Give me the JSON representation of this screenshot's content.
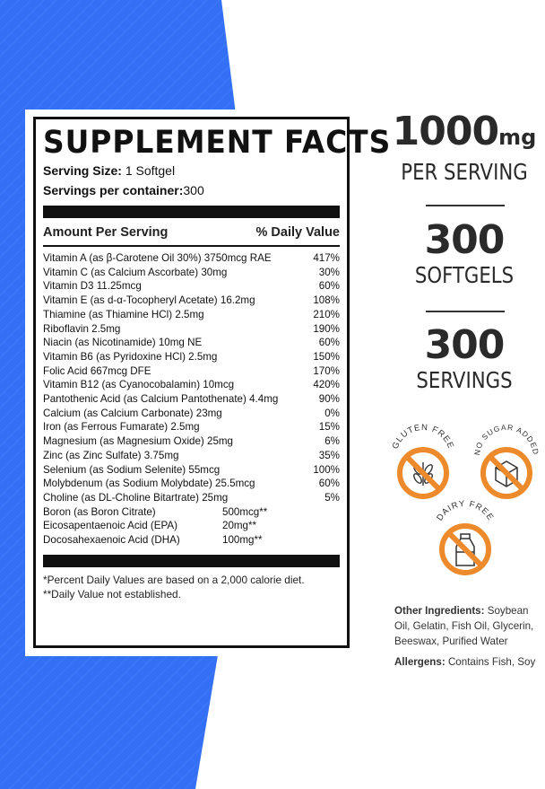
{
  "colors": {
    "background_blue": "#3370f5",
    "badge_orange": "#ec8a2c"
  },
  "facts": {
    "title": "SUPPLEMENT FACTS",
    "serving_size_label": "Serving Size:",
    "serving_size_value": "1 Softgel",
    "servings_label": "Servings per container:",
    "servings_value": "300",
    "amount_header": "Amount Per Serving",
    "dv_header": "% Daily Value",
    "rows": [
      {
        "name": "Vitamin A (as β-Carotene Oil 30%) 3750mcg RAE",
        "dv": "417%"
      },
      {
        "name": "Vitamin C (as Calcium Ascorbate)  30mg",
        "dv": "30%"
      },
      {
        "name": "Vitamin D3 11.25mcg",
        "dv": "60%"
      },
      {
        "name": "Vitamin E (as d-α-Tocopheryl Acetate)  16.2mg",
        "dv": "108%"
      },
      {
        "name": "Thiamine (as Thiamine HCl)  2.5mg",
        "dv": "210%"
      },
      {
        "name": "Riboflavin  2.5mg",
        "dv": "190%"
      },
      {
        "name": "Niacin (as Nicotinamide)  10mg NE",
        "dv": "60%"
      },
      {
        "name": "Vitamin B6 (as Pyridoxine HCl)  2.5mg",
        "dv": "150%"
      },
      {
        "name": "Folic Acid  667mcg DFE",
        "dv": "170%"
      },
      {
        "name": "Vitamin B12 (as Cyanocobalamin)  10mcg",
        "dv": "420%"
      },
      {
        "name": "Pantothenic Acid (as Calcium Pantothenate)  4.4mg",
        "dv": "90%"
      },
      {
        "name": "Calcium (as Calcium Carbonate)  23mg",
        "dv": "0%"
      },
      {
        "name": "Iron (as Ferrous Fumarate)  2.5mg",
        "dv": "15%"
      },
      {
        "name": "Magnesium (as Magnesium Oxide)  25mg",
        "dv": "6%"
      },
      {
        "name": "Zinc (as Zinc Sulfate)  3.75mg",
        "dv": "35%"
      },
      {
        "name": "Selenium (as Sodium Selenite)  55mcg",
        "dv": "100%"
      },
      {
        "name": "Molybdenum (as Sodium Molybdate)  25.5mcg",
        "dv": "60%"
      },
      {
        "name": "Choline (as DL-Choline Bitartrate)  25mg",
        "dv": "5%"
      }
    ],
    "extra_rows": [
      {
        "name": "Boron (as Boron Citrate)",
        "amount": "500mcg**"
      },
      {
        "name": "Eicosapentaenoic Acid (EPA)",
        "amount": "20mg**"
      },
      {
        "name": "Docosahexaenoic Acid (DHA)",
        "amount": "100mg**"
      }
    ],
    "footnote1": "*Percent Daily Values are based on a 2,000 calorie diet.",
    "footnote2": "**Daily Value not established."
  },
  "highlights": [
    {
      "value": "1000",
      "unit": "mg",
      "label": "PER SERVING"
    },
    {
      "value": "300",
      "label": "SOFTGELS"
    },
    {
      "value": "300",
      "label": "SERVINGS"
    }
  ],
  "badges": [
    {
      "text": "GLUTEN FREE",
      "icon": "wheat-icon"
    },
    {
      "text": "NO SUGAR ADDED",
      "icon": "sugar-cube-icon"
    },
    {
      "text": "DAIRY FREE",
      "icon": "milk-bottle-icon"
    }
  ],
  "ingredients": {
    "label": "Other Ingredients:",
    "value": "Soybean Oil, Gelatin, Fish Oil, Glycerin, Beeswax, Purified Water"
  },
  "allergens": {
    "label": "Allergens:",
    "value": "Contains Fish, Soy"
  }
}
